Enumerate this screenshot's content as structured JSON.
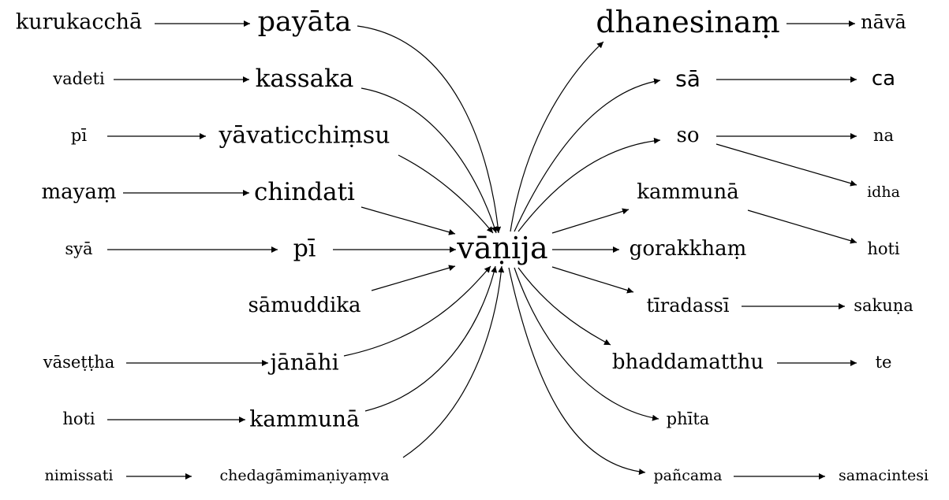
{
  "diagram": {
    "center": {
      "id": "c",
      "label": "vāṇija"
    },
    "nodes": [
      {
        "id": "l1a",
        "label": "kurukacchā"
      },
      {
        "id": "l1b",
        "label": "payāta"
      },
      {
        "id": "l2a",
        "label": "vadeti"
      },
      {
        "id": "l2b",
        "label": "kassaka"
      },
      {
        "id": "l3a",
        "label": "pī"
      },
      {
        "id": "l3b",
        "label": "yāvaticchiṃsu"
      },
      {
        "id": "l4a",
        "label": "mayaṃ"
      },
      {
        "id": "l4b",
        "label": "chindati"
      },
      {
        "id": "l5a",
        "label": "syā"
      },
      {
        "id": "l5b",
        "label": "pī"
      },
      {
        "id": "l6b",
        "label": "sāmuddika"
      },
      {
        "id": "l7a",
        "label": "vāseṭṭha"
      },
      {
        "id": "l7b",
        "label": "jānāhi"
      },
      {
        "id": "l8a",
        "label": "hoti"
      },
      {
        "id": "l8b",
        "label": "kammunā"
      },
      {
        "id": "l9a",
        "label": "nimissati"
      },
      {
        "id": "l9b",
        "label": "chedagāmimaṇiyaṃva"
      },
      {
        "id": "r1",
        "label": "dhanesinaṃ"
      },
      {
        "id": "r1b",
        "label": "nāvā"
      },
      {
        "id": "r2",
        "label": "sā"
      },
      {
        "id": "r2b",
        "label": "ca"
      },
      {
        "id": "r3",
        "label": "so"
      },
      {
        "id": "r3b",
        "label": "na"
      },
      {
        "id": "r3c",
        "label": "idha"
      },
      {
        "id": "r4",
        "label": "kammunā"
      },
      {
        "id": "r4b",
        "label": "hoti"
      },
      {
        "id": "r5",
        "label": "gorakkhaṃ"
      },
      {
        "id": "r6",
        "label": "tīradassī"
      },
      {
        "id": "r6b",
        "label": "sakuṇa"
      },
      {
        "id": "r7",
        "label": "bhaddamatthu"
      },
      {
        "id": "r7b",
        "label": "te"
      },
      {
        "id": "r8",
        "label": "phīta"
      },
      {
        "id": "r9",
        "label": "pañcama"
      },
      {
        "id": "r9b",
        "label": "samacintesi"
      }
    ],
    "edges": [
      [
        "l1a",
        "l1b"
      ],
      [
        "l1b",
        "c"
      ],
      [
        "l2a",
        "l2b"
      ],
      [
        "l2b",
        "c"
      ],
      [
        "l3a",
        "l3b"
      ],
      [
        "l3b",
        "c"
      ],
      [
        "l4a",
        "l4b"
      ],
      [
        "l4b",
        "c"
      ],
      [
        "l5a",
        "l5b"
      ],
      [
        "l5b",
        "c"
      ],
      [
        "l6b",
        "c"
      ],
      [
        "l7a",
        "l7b"
      ],
      [
        "l7b",
        "c"
      ],
      [
        "l8a",
        "l8b"
      ],
      [
        "l8b",
        "c"
      ],
      [
        "l9a",
        "l9b"
      ],
      [
        "l9b",
        "c"
      ],
      [
        "c",
        "r1"
      ],
      [
        "r1",
        "r1b"
      ],
      [
        "c",
        "r2"
      ],
      [
        "r2",
        "r2b"
      ],
      [
        "c",
        "r3"
      ],
      [
        "r3",
        "r3b"
      ],
      [
        "r3",
        "r3c"
      ],
      [
        "c",
        "r4"
      ],
      [
        "r4",
        "r4b"
      ],
      [
        "c",
        "r5"
      ],
      [
        "c",
        "r6"
      ],
      [
        "r6",
        "r6b"
      ],
      [
        "c",
        "r7"
      ],
      [
        "r7",
        "r7b"
      ],
      [
        "c",
        "r8"
      ],
      [
        "c",
        "r9"
      ],
      [
        "r9",
        "r9b"
      ]
    ]
  }
}
